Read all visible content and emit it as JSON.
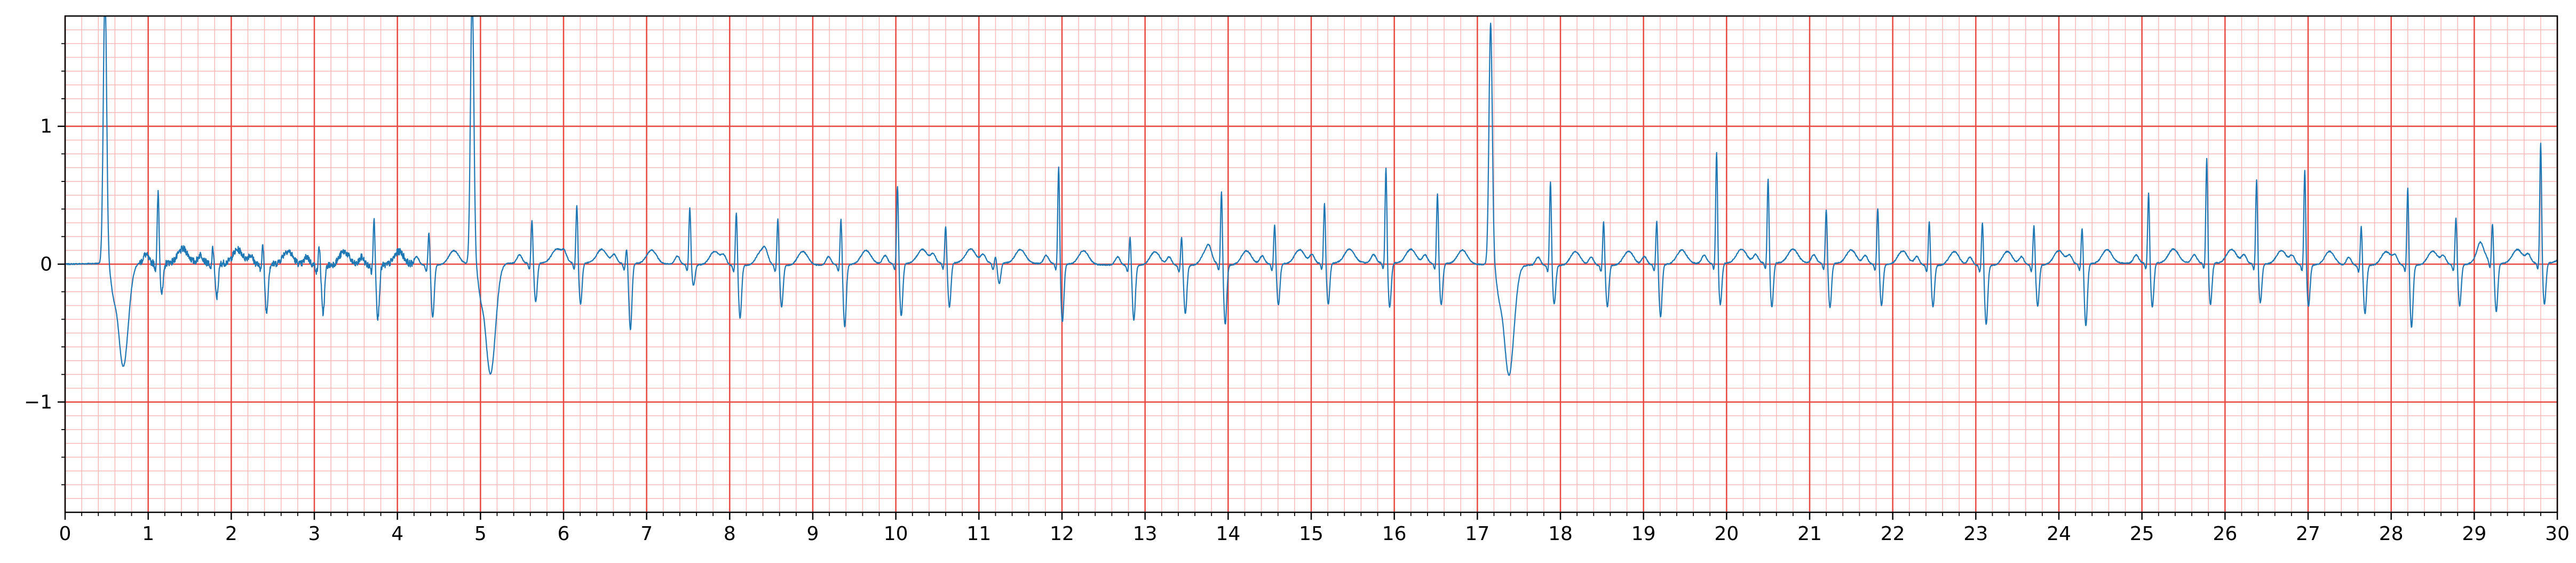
{
  "chart_data": {
    "type": "line",
    "title": "",
    "xlabel": "",
    "ylabel": "",
    "xlim": [
      0,
      30
    ],
    "ylim": [
      -1.8,
      1.8
    ],
    "grid": true,
    "legend": "none",
    "x_ticks": [
      "0",
      "1",
      "2",
      "3",
      "4",
      "5",
      "6",
      "7",
      "8",
      "9",
      "10",
      "11",
      "12",
      "13",
      "14",
      "15",
      "16",
      "17",
      "18",
      "19",
      "20",
      "21",
      "22",
      "23",
      "24",
      "25",
      "26",
      "27",
      "28",
      "29",
      "30"
    ],
    "y_ticks": [
      {
        "value": 1,
        "label": "1"
      },
      {
        "value": 0,
        "label": "0"
      },
      {
        "value": -1,
        "label": "−1"
      }
    ],
    "colors": {
      "line": "#1f77b4",
      "major_grid": "#e8483f",
      "minor_grid": "#f8b8b8",
      "axes": "#000000"
    },
    "series": [
      {
        "name": "",
        "beats": [
          {
            "t": 0.48,
            "peak": 2.0,
            "trough": -0.75,
            "type": "pvc"
          },
          {
            "t": 1.12,
            "peak": 0.52,
            "trough": -0.22
          },
          {
            "t": 1.78,
            "peak": 0.12,
            "trough": -0.25
          },
          {
            "t": 2.38,
            "peak": 0.15,
            "trough": -0.35
          },
          {
            "t": 3.06,
            "peak": 0.15,
            "trough": -0.35
          },
          {
            "t": 3.72,
            "peak": 0.35,
            "trough": -0.38
          },
          {
            "t": 4.38,
            "peak": 0.25,
            "trough": -0.38
          },
          {
            "t": 4.9,
            "peak": 2.0,
            "trough": -0.8,
            "type": "pvc"
          },
          {
            "t": 5.62,
            "peak": 0.32,
            "trough": -0.28
          },
          {
            "t": 6.16,
            "peak": 0.43,
            "trough": -0.3
          },
          {
            "t": 6.76,
            "peak": 0.12,
            "trough": -0.48
          },
          {
            "t": 7.52,
            "peak": 0.42,
            "trough": -0.15
          },
          {
            "t": 8.08,
            "peak": 0.4,
            "trough": -0.38
          },
          {
            "t": 8.58,
            "peak": 0.35,
            "trough": -0.3
          },
          {
            "t": 9.34,
            "peak": 0.35,
            "trough": -0.45
          },
          {
            "t": 10.02,
            "peak": 0.58,
            "trough": -0.38
          },
          {
            "t": 10.6,
            "peak": 0.28,
            "trough": -0.32
          },
          {
            "t": 11.2,
            "peak": 0.05,
            "trough": -0.15
          },
          {
            "t": 11.96,
            "peak": 0.72,
            "trough": -0.42
          },
          {
            "t": 12.82,
            "peak": 0.22,
            "trough": -0.4
          },
          {
            "t": 13.44,
            "peak": 0.22,
            "trough": -0.35
          },
          {
            "t": 13.92,
            "peak": 0.55,
            "trough": -0.43
          },
          {
            "t": 14.56,
            "peak": 0.3,
            "trough": -0.3
          },
          {
            "t": 15.16,
            "peak": 0.45,
            "trough": -0.3
          },
          {
            "t": 15.9,
            "peak": 0.7,
            "trough": -0.32
          },
          {
            "t": 16.52,
            "peak": 0.52,
            "trough": -0.3
          },
          {
            "t": 17.16,
            "peak": 1.75,
            "trough": -0.8,
            "type": "pvc"
          },
          {
            "t": 17.88,
            "peak": 0.62,
            "trough": -0.28
          },
          {
            "t": 18.52,
            "peak": 0.33,
            "trough": -0.3
          },
          {
            "t": 19.16,
            "peak": 0.33,
            "trough": -0.38
          },
          {
            "t": 19.88,
            "peak": 0.82,
            "trough": -0.3
          },
          {
            "t": 20.5,
            "peak": 0.62,
            "trough": -0.32
          },
          {
            "t": 21.2,
            "peak": 0.4,
            "trough": -0.32
          },
          {
            "t": 21.82,
            "peak": 0.42,
            "trough": -0.3
          },
          {
            "t": 22.44,
            "peak": 0.33,
            "trough": -0.3
          },
          {
            "t": 23.08,
            "peak": 0.33,
            "trough": -0.43
          },
          {
            "t": 23.7,
            "peak": 0.3,
            "trough": -0.3
          },
          {
            "t": 24.28,
            "peak": 0.28,
            "trough": -0.45
          },
          {
            "t": 25.08,
            "peak": 0.52,
            "trough": -0.32
          },
          {
            "t": 25.78,
            "peak": 0.77,
            "trough": -0.3
          },
          {
            "t": 26.38,
            "peak": 0.62,
            "trough": -0.28
          },
          {
            "t": 26.96,
            "peak": 0.7,
            "trough": -0.3
          },
          {
            "t": 27.64,
            "peak": 0.3,
            "trough": -0.35
          },
          {
            "t": 28.2,
            "peak": 0.58,
            "trough": -0.45
          },
          {
            "t": 28.78,
            "peak": 0.35,
            "trough": -0.3
          },
          {
            "t": 29.22,
            "peak": 0.3,
            "trough": -0.35
          },
          {
            "t": 29.8,
            "peak": 0.88,
            "trough": -0.3
          }
        ]
      }
    ]
  }
}
